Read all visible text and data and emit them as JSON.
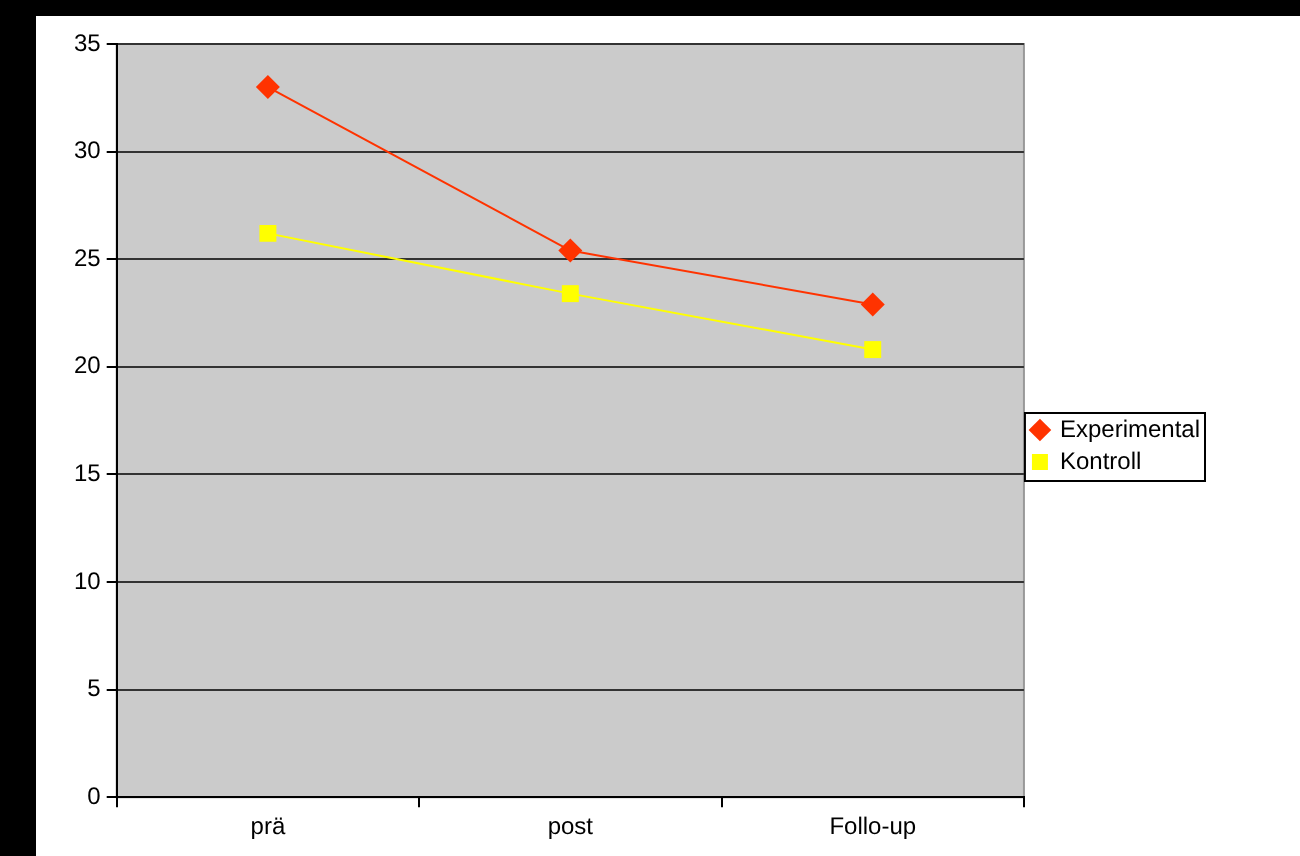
{
  "chart_data": {
    "type": "line",
    "categories": [
      "prä",
      "post",
      "Follo-up"
    ],
    "series": [
      {
        "name": "Experimental",
        "color": "#ff3300",
        "values": [
          33,
          25.4,
          22.9
        ],
        "marker": "diamond"
      },
      {
        "name": "Kontroll",
        "color": "#ffff00",
        "values": [
          26.2,
          23.4,
          20.8
        ],
        "marker": "square"
      }
    ],
    "ylim": [
      0,
      35
    ],
    "yticks": [
      0,
      5,
      10,
      15,
      20,
      25,
      30,
      35
    ],
    "grid": "y",
    "legend": "right",
    "line_style": "solid"
  }
}
